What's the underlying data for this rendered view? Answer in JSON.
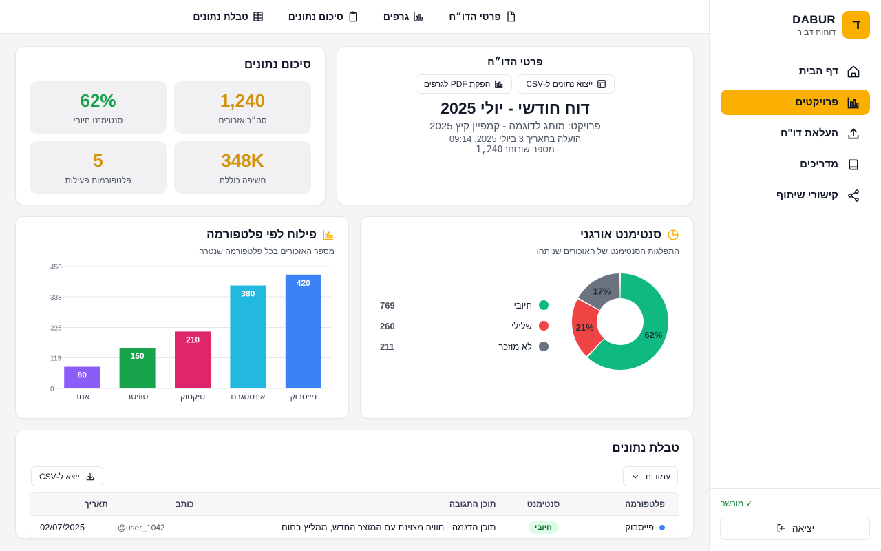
{
  "brand": {
    "name": "DABUR",
    "subtitle": "דוחות דבור",
    "logo_letter": "ד",
    "accent": "#fbb000"
  },
  "sidebar": {
    "items": [
      {
        "label": "דף הבית",
        "icon": "home-icon",
        "active": false
      },
      {
        "label": "פרויקטים",
        "icon": "bar-chart-icon",
        "active": true
      },
      {
        "label": "העלאת דו\"ח",
        "icon": "upload-icon",
        "active": false
      },
      {
        "label": "מדריכים",
        "icon": "book-icon",
        "active": false
      },
      {
        "label": "קישורי שיתוף",
        "icon": "share-icon",
        "active": false
      }
    ],
    "license": "✓ מורשה",
    "logout": "יציאה"
  },
  "tabs": [
    {
      "label": "פרטי הדו״ח",
      "icon": "file-icon"
    },
    {
      "label": "גרפים",
      "icon": "bar-chart-icon"
    },
    {
      "label": "סיכום נתונים",
      "icon": "clipboard-icon"
    },
    {
      "label": "טבלת נתונים",
      "icon": "table-icon"
    }
  ],
  "details": {
    "title": "פרטי הדו״ח",
    "export_csv": "ייצוא נתונים ל-CSV",
    "export_pdf": "הפקת PDF לגרפים",
    "report_title": "דוח חודשי - יולי 2025",
    "project": "פרויקט: מותג לדוגמה - קמפיין קיץ 2025",
    "uploaded": "הועלה בתאריך 3 ביולי 2025, 09:14",
    "rows_label": "מספר שורות:",
    "rows_value": "1,240"
  },
  "summary": {
    "title": "סיכום נתונים",
    "stats": [
      {
        "value": "1,240",
        "label": "סה״כ אזכורים",
        "color": "#d4910a"
      },
      {
        "value": "62%",
        "label": "סנטימנט חיובי",
        "color": "#16a34a"
      },
      {
        "value": "348K",
        "label": "חשיפה כוללת",
        "color": "#d4910a"
      },
      {
        "value": "5",
        "label": "פלטפורמות פעילות",
        "color": "#d4910a"
      }
    ]
  },
  "sentiment": {
    "title": "סנטימנט אורגני",
    "subtitle": "התפלגות הסנטימנט של האזכורים שנותחו",
    "legend": [
      {
        "name": "חיובי",
        "count": "769",
        "color": "#10b981"
      },
      {
        "name": "שלילי",
        "count": "260",
        "color": "#ef4444"
      },
      {
        "name": "לא מוזכר",
        "count": "211",
        "color": "#6b7280"
      }
    ]
  },
  "platform": {
    "title": "פילוח לפי פלטפורמה",
    "subtitle": "מספר האזכורים בכל פלטפורמה שנטרה"
  },
  "chart_data": [
    {
      "type": "bar",
      "categories": [
        "פייסבוק",
        "אינסטגרם",
        "טיקטוק",
        "טוויטר",
        "אתר"
      ],
      "values": [
        420,
        380,
        210,
        150,
        80
      ],
      "colors": [
        "#3b82f6",
        "#22b8e0",
        "#e0266b",
        "#16a34a",
        "#8b5cf6"
      ],
      "yticks": [
        "0",
        "113",
        "225",
        "338",
        "450"
      ],
      "ylim": [
        0,
        450
      ],
      "grid": true
    },
    {
      "type": "pie",
      "categories": [
        "חיובי",
        "שלילי",
        "לא מוזכר"
      ],
      "values": [
        769,
        260,
        211
      ],
      "labels": [
        "62%",
        "21%",
        "17%"
      ],
      "colors": [
        "#10b981",
        "#ef4444",
        "#6b7280"
      ]
    }
  ],
  "table": {
    "title": "טבלת נתונים",
    "columns_button": "עמודות",
    "export_button": "ייצא ל-CSV",
    "headers": {
      "platform": "פלטפורמה",
      "sentiment": "סנטימנט",
      "content": "תוכן התגובה",
      "author": "כותב",
      "date": "תאריך"
    },
    "rows": [
      {
        "platform": "פייסבוק",
        "sentiment": "חיובי",
        "content": "תוכן הדגמה - חוויה מצוינת עם המוצר החדש, ממליץ בחום",
        "author": "@user_1042",
        "date": "02/07/2025"
      }
    ]
  }
}
